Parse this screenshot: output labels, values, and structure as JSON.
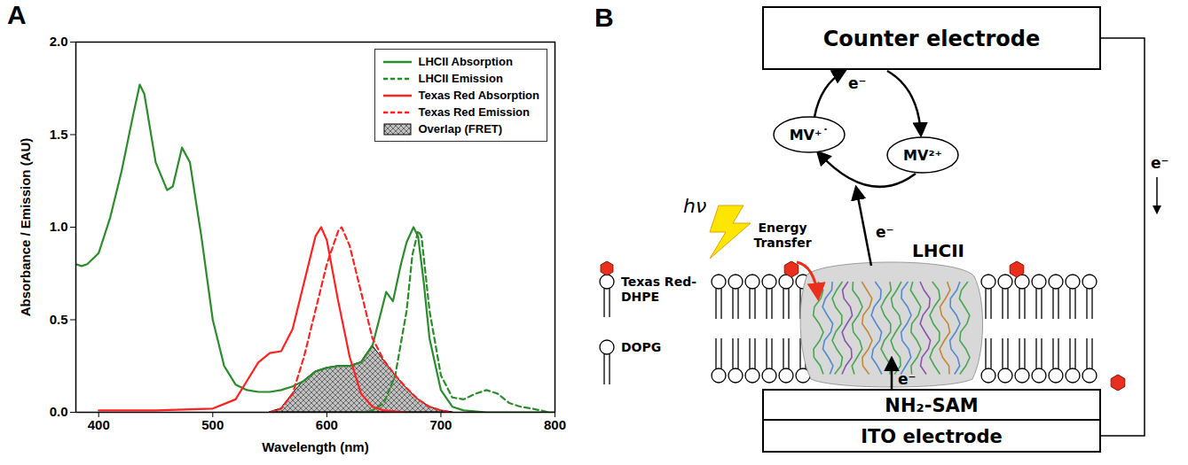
{
  "chart_data": {
    "type": "line",
    "panel_label": "A",
    "x_label": "Wavelength (nm)",
    "y_label": "Absorbance / Emission (AU)",
    "xlim": [
      380,
      800
    ],
    "xticks": [
      400,
      500,
      600,
      700,
      800
    ],
    "ylim": [
      0,
      2
    ],
    "yticks": [
      {
        "value": 0,
        "label": "0.0"
      },
      {
        "value": 0.5,
        "label": "0.5"
      },
      {
        "value": 1,
        "label": "1.0"
      },
      {
        "value": 1.5,
        "label": "1.5"
      },
      {
        "value": 2,
        "label": "2.0"
      }
    ],
    "grid": false,
    "legend": "upper right",
    "series": [
      {
        "name": "LHCII Absorption",
        "color": "#2a8c2a",
        "line_style": "solid",
        "x": [
          380,
          385,
          390,
          400,
          410,
          420,
          430,
          436,
          440,
          450,
          460,
          465,
          473,
          480,
          490,
          500,
          510,
          520,
          530,
          540,
          550,
          560,
          570,
          580,
          590,
          600,
          610,
          620,
          630,
          640,
          645,
          652,
          658,
          665,
          670,
          676,
          680,
          685,
          690,
          700,
          710,
          720,
          740,
          760,
          780,
          800
        ],
        "values": [
          0.8,
          0.79,
          0.8,
          0.86,
          1.05,
          1.3,
          1.6,
          1.77,
          1.72,
          1.35,
          1.2,
          1.22,
          1.43,
          1.35,
          0.95,
          0.5,
          0.25,
          0.15,
          0.12,
          0.11,
          0.11,
          0.12,
          0.14,
          0.17,
          0.22,
          0.24,
          0.25,
          0.25,
          0.27,
          0.36,
          0.48,
          0.65,
          0.6,
          0.8,
          0.92,
          1.0,
          0.95,
          0.7,
          0.4,
          0.12,
          0.03,
          0.01,
          0.0,
          0.0,
          0.0,
          0.0
        ]
      },
      {
        "name": "LHCII Emission",
        "color": "#2a8c2a",
        "line_style": "dashed",
        "x": [
          630,
          640,
          650,
          660,
          670,
          675,
          680,
          683,
          690,
          700,
          710,
          720,
          730,
          740,
          750,
          760,
          770,
          780,
          795
        ],
        "values": [
          0.0,
          0.01,
          0.05,
          0.2,
          0.55,
          0.85,
          0.98,
          0.95,
          0.55,
          0.2,
          0.08,
          0.07,
          0.1,
          0.12,
          0.1,
          0.05,
          0.03,
          0.02,
          0.0
        ]
      },
      {
        "name": "Texas Red Absorption",
        "color": "#ff2020",
        "line_style": "solid",
        "x": [
          400,
          450,
          500,
          520,
          530,
          540,
          550,
          560,
          570,
          580,
          590,
          595,
          600,
          610,
          620,
          630,
          640,
          650,
          670
        ],
        "values": [
          0.01,
          0.01,
          0.02,
          0.07,
          0.17,
          0.27,
          0.32,
          0.33,
          0.45,
          0.7,
          0.95,
          1.0,
          0.93,
          0.6,
          0.3,
          0.1,
          0.03,
          0.01,
          0.0
        ]
      },
      {
        "name": "Texas Red Emission",
        "color": "#ff2020",
        "line_style": "dashed",
        "x": [
          550,
          560,
          570,
          580,
          590,
          600,
          610,
          613,
          620,
          630,
          640,
          650,
          660,
          670,
          680,
          690,
          700,
          710
        ],
        "values": [
          0.0,
          0.02,
          0.1,
          0.3,
          0.55,
          0.8,
          0.98,
          1.0,
          0.9,
          0.65,
          0.4,
          0.28,
          0.2,
          0.13,
          0.07,
          0.03,
          0.01,
          0.0
        ]
      },
      {
        "name": "Overlap (FRET)",
        "type": "area",
        "color": "#c0c0c0",
        "x": [
          550,
          560,
          570,
          580,
          590,
          600,
          610,
          620,
          630,
          640,
          650,
          660,
          670,
          680,
          690,
          700,
          710
        ],
        "values": [
          0.0,
          0.02,
          0.1,
          0.17,
          0.22,
          0.24,
          0.25,
          0.25,
          0.27,
          0.36,
          0.28,
          0.2,
          0.13,
          0.07,
          0.03,
          0.01,
          0.0
        ]
      }
    ]
  },
  "diagram": {
    "panel_label": "B",
    "counter_electrode": "Counter electrode",
    "working_electrode": "ITO electrode",
    "sam": "NH₂-SAM",
    "mediator_reduced": "MV⁺˙",
    "mediator_oxidized": "MV²⁺",
    "light": "hν",
    "energy_transfer": "Energy Transfer",
    "protein": "LHCII",
    "electron": "e⁻",
    "legend": [
      {
        "label": "Texas Red-DHPE"
      },
      {
        "label": "DOPG"
      }
    ]
  }
}
